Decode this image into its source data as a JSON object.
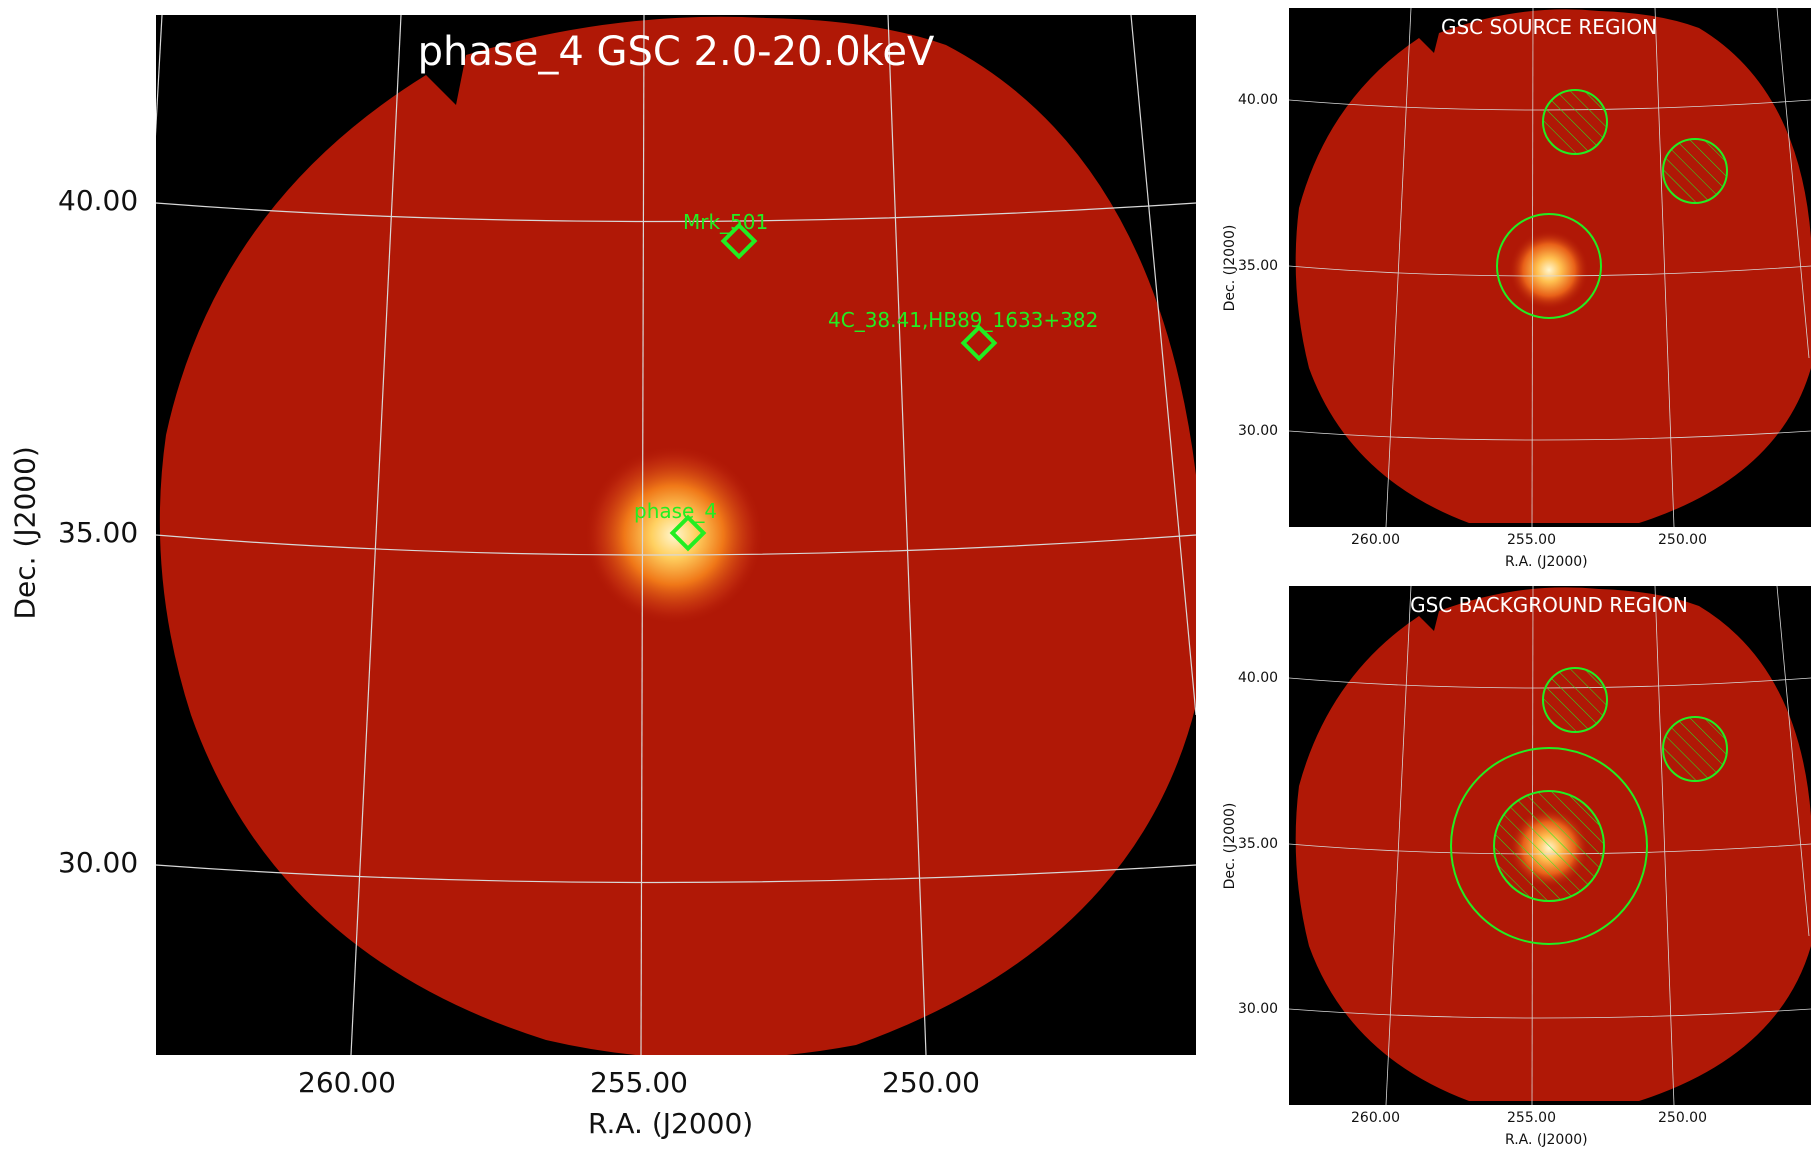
{
  "main": {
    "title": "phase_4 GSC 2.0-20.0keV",
    "xlabel": "R.A. (J2000)",
    "ylabel": "Dec. (J2000)",
    "ra_ticks": [
      "260.00",
      "255.00",
      "250.00"
    ],
    "dec_ticks": [
      "40.00",
      "35.00",
      "30.00"
    ],
    "sources": [
      {
        "label": "Mrk_501"
      },
      {
        "label": "4C_38.41,HB89_1633+382"
      },
      {
        "label": "phase_4"
      }
    ]
  },
  "source_region": {
    "title": "GSC SOURCE REGION",
    "xlabel": "R.A. (J2000)",
    "ylabel": "Dec. (J2000)",
    "ra_ticks": [
      "260.00",
      "255.00",
      "250.00"
    ],
    "dec_ticks": [
      "40.00",
      "35.00",
      "30.00"
    ]
  },
  "background_region": {
    "title": "GSC BACKGROUND REGION",
    "xlabel": "R.A. (J2000)",
    "ylabel": "Dec. (J2000)",
    "ra_ticks": [
      "260.00",
      "255.00",
      "250.00"
    ],
    "dec_ticks": [
      "40.00",
      "35.00",
      "30.00"
    ]
  },
  "colors": {
    "field": "#b01806",
    "hot": "#fff2c0",
    "marker": "#33ff33",
    "grid": "#cfcfcf"
  }
}
